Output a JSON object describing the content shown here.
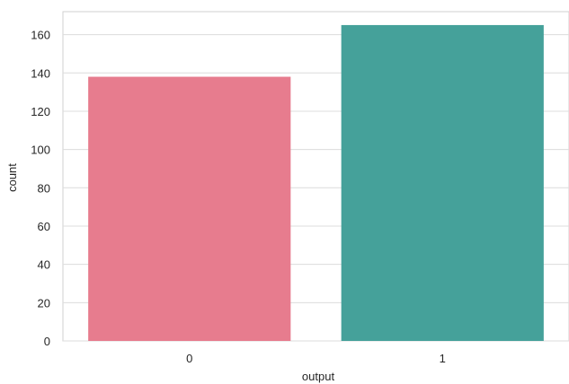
{
  "chart_data": {
    "type": "bar",
    "title": "",
    "xlabel": "output",
    "ylabel": "count",
    "categories": [
      "0",
      "1"
    ],
    "values": [
      138,
      165
    ],
    "ylim": [
      0,
      172
    ],
    "yticks": [
      0,
      20,
      40,
      60,
      80,
      100,
      120,
      140,
      160
    ],
    "grid": true,
    "colors": [
      "#e77c8e",
      "#45a19a"
    ]
  }
}
